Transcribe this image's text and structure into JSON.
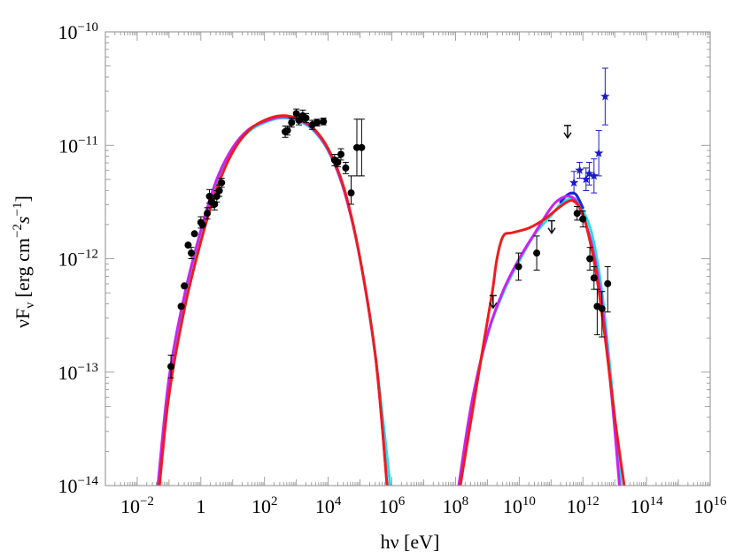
{
  "chart_data": {
    "type": "scatter",
    "title": "",
    "xlabel": "hν [eV]",
    "ylabel": "νF_ν [erg cm^-2 s^-1]",
    "xscale": "log",
    "yscale": "log",
    "xlim": [
      0.001,
      1e+16
    ],
    "ylim": [
      1e-14,
      1e-10
    ],
    "grid": false,
    "legend": "none",
    "x_tick_labels": [
      {
        "value": 0.01,
        "base": "10",
        "exp": "−2"
      },
      {
        "value": 1,
        "base": "1",
        "exp": ""
      },
      {
        "value": 100,
        "base": "10",
        "exp": "2"
      },
      {
        "value": 10000,
        "base": "10",
        "exp": "4"
      },
      {
        "value": 1000000,
        "base": "10",
        "exp": "6"
      },
      {
        "value": 100000000,
        "base": "10",
        "exp": "8"
      },
      {
        "value": 10000000000,
        "base": "10",
        "exp": "10"
      },
      {
        "value": 1000000000000,
        "base": "10",
        "exp": "12"
      },
      {
        "value": 100000000000000,
        "base": "10",
        "exp": "14"
      },
      {
        "value": 10000000000000000,
        "base": "10",
        "exp": "16"
      }
    ],
    "y_tick_labels": [
      {
        "value": 1e-10,
        "base": "10",
        "exp": "−10"
      },
      {
        "value": 1e-11,
        "base": "10",
        "exp": "−11"
      },
      {
        "value": 1e-12,
        "base": "10",
        "exp": "−12"
      },
      {
        "value": 1e-13,
        "base": "10",
        "exp": "−13"
      },
      {
        "value": 1e-14,
        "base": "10",
        "exp": "−14"
      }
    ],
    "colors": {
      "red": "#ee1c1c",
      "magenta": "#cc22ee",
      "cyan": "#22ddee",
      "blue": "#2222dd",
      "stars": "#1a1acc",
      "data": "#000000"
    },
    "data_points": [
      [
        -0.94,
        -12.95,
        0.1,
        0.1
      ],
      [
        -0.62,
        -12.42,
        0,
        0
      ],
      [
        -0.52,
        -12.24,
        0,
        0
      ],
      [
        -0.4,
        -11.88,
        0,
        0
      ],
      [
        -0.3,
        -11.95,
        0.05,
        0.05
      ],
      [
        -0.2,
        -11.78,
        0,
        0
      ],
      [
        0.0,
        -11.68,
        0.05,
        0.05
      ],
      [
        0.05,
        -11.7,
        0,
        0
      ],
      [
        0.2,
        -11.6,
        0.05,
        0.05
      ],
      [
        0.27,
        -11.45,
        0.06,
        0.06
      ],
      [
        0.33,
        -11.5,
        0.05,
        0.05
      ],
      [
        0.43,
        -11.52,
        0.05,
        0.05
      ],
      [
        0.5,
        -11.45,
        0.05,
        0.05
      ],
      [
        0.58,
        -11.4,
        0.05,
        0.05
      ],
      [
        0.65,
        -11.33,
        0.04,
        0.04
      ],
      [
        2.65,
        -10.88,
        0.05,
        0.05
      ],
      [
        2.72,
        -10.87,
        0.04,
        0.04
      ],
      [
        2.85,
        -10.8,
        0.04,
        0.04
      ],
      [
        3.0,
        -10.72,
        0.04,
        0.04
      ],
      [
        3.08,
        -10.78,
        0.04,
        0.04
      ],
      [
        3.2,
        -10.74,
        0.05,
        0.05
      ],
      [
        3.3,
        -10.76,
        0.04,
        0.04
      ],
      [
        3.5,
        -10.82,
        0.04,
        0.04
      ],
      [
        3.65,
        -10.8,
        0.03,
        0.03
      ],
      [
        3.85,
        -10.79,
        0.03,
        0.03
      ],
      [
        4.2,
        -11.13,
        0.05,
        0.05
      ],
      [
        4.3,
        -11.15,
        0.04,
        0.04
      ],
      [
        4.4,
        -11.08,
        0.05,
        0.05
      ],
      [
        4.55,
        -11.2,
        0.05,
        0.05
      ],
      [
        4.72,
        -11.42,
        0.1,
        0.15
      ],
      [
        4.9,
        -11.02,
        0.25,
        0.25
      ],
      [
        5.05,
        -11.02,
        0.25,
        0.25
      ],
      [
        9.98,
        -12.07,
        0.12,
        0.12
      ],
      [
        10.55,
        -11.95,
        0.15,
        0.15
      ],
      [
        11.82,
        -11.6,
        0.06,
        0.06
      ],
      [
        12.0,
        -11.65,
        0.07,
        0.07
      ],
      [
        12.22,
        -12.0,
        0.1,
        0.1
      ],
      [
        12.35,
        -12.17,
        0.1,
        0.1
      ],
      [
        12.45,
        -12.42,
        0.25,
        0.15
      ],
      [
        12.6,
        -12.44,
        0.25,
        0.15
      ],
      [
        12.78,
        -12.22,
        0.25,
        0.15
      ]
    ],
    "upper_limits": [
      [
        9.18,
        -12.38
      ],
      [
        11.02,
        -11.72
      ],
      [
        11.52,
        -10.88
      ]
    ],
    "stars": [
      [
        11.72,
        -11.33,
        0.1,
        0.1
      ],
      [
        11.9,
        -11.22,
        0.07,
        0.07
      ],
      [
        12.1,
        -11.3,
        0.1,
        0.1
      ],
      [
        12.2,
        -11.25,
        0.1,
        0.1
      ],
      [
        12.35,
        -11.27,
        0.15,
        0.15
      ],
      [
        12.5,
        -11.07,
        0.2,
        0.2
      ],
      [
        12.7,
        -10.57,
        0.25,
        0.25
      ]
    ],
    "curves": [
      {
        "color": "cyan",
        "points": [
          [
            -1.35,
            -14
          ],
          [
            -1,
            -13.1
          ],
          [
            -0.5,
            -12.35
          ],
          [
            0,
            -11.8
          ],
          [
            0.5,
            -11.35
          ],
          [
            1,
            -11.05
          ],
          [
            1.5,
            -10.88
          ],
          [
            2,
            -10.8
          ],
          [
            2.5,
            -10.76
          ],
          [
            3,
            -10.78
          ],
          [
            3.5,
            -10.86
          ],
          [
            4,
            -11.05
          ],
          [
            4.5,
            -11.4
          ],
          [
            5,
            -12.0
          ],
          [
            5.5,
            -12.9
          ],
          [
            5.95,
            -14
          ]
        ]
      },
      {
        "color": "cyan",
        "points": [
          [
            8.15,
            -14
          ],
          [
            8.5,
            -13.3
          ],
          [
            9,
            -12.68
          ],
          [
            9.5,
            -12.3
          ],
          [
            10,
            -12.02
          ],
          [
            10.5,
            -11.78
          ],
          [
            11,
            -11.62
          ],
          [
            11.3,
            -11.52
          ],
          [
            11.6,
            -11.47
          ],
          [
            11.8,
            -11.48
          ],
          [
            12.0,
            -11.57
          ],
          [
            12.3,
            -11.8
          ],
          [
            12.6,
            -12.3
          ],
          [
            12.9,
            -13.1
          ],
          [
            13.2,
            -14
          ]
        ]
      },
      {
        "color": "blue",
        "points": [
          [
            11.3,
            -11.5
          ],
          [
            11.5,
            -11.44
          ],
          [
            11.65,
            -11.42
          ],
          [
            11.8,
            -11.44
          ],
          [
            12.0,
            -11.55
          ]
        ]
      },
      {
        "color": "magenta",
        "points": [
          [
            -1.35,
            -14
          ],
          [
            -1,
            -13.05
          ],
          [
            -0.5,
            -12.3
          ],
          [
            0,
            -11.75
          ],
          [
            0.5,
            -11.3
          ],
          [
            1,
            -11.02
          ],
          [
            1.5,
            -10.86
          ],
          [
            2,
            -10.79
          ],
          [
            2.5,
            -10.75
          ],
          [
            3,
            -10.77
          ],
          [
            3.5,
            -10.85
          ],
          [
            4,
            -11.04
          ],
          [
            4.5,
            -11.4
          ],
          [
            5,
            -12.0
          ],
          [
            5.5,
            -12.9
          ],
          [
            5.85,
            -14
          ]
        ]
      },
      {
        "color": "magenta",
        "points": [
          [
            8.1,
            -14
          ],
          [
            8.5,
            -13.28
          ],
          [
            9,
            -12.67
          ],
          [
            9.5,
            -12.28
          ],
          [
            10,
            -12.0
          ],
          [
            10.5,
            -11.77
          ],
          [
            11,
            -11.55
          ],
          [
            11.3,
            -11.47
          ],
          [
            11.6,
            -11.45
          ],
          [
            11.8,
            -11.5
          ],
          [
            12.0,
            -11.62
          ],
          [
            12.3,
            -11.9
          ],
          [
            12.6,
            -12.4
          ],
          [
            12.9,
            -13.2
          ],
          [
            13.15,
            -14
          ]
        ]
      },
      {
        "color": "red",
        "points": [
          [
            -1.3,
            -14
          ],
          [
            -1,
            -13.2
          ],
          [
            -0.5,
            -12.42
          ],
          [
            0,
            -11.85
          ],
          [
            0.5,
            -11.38
          ],
          [
            1,
            -11.06
          ],
          [
            1.5,
            -10.87
          ],
          [
            2,
            -10.78
          ],
          [
            2.5,
            -10.74
          ],
          [
            3,
            -10.76
          ],
          [
            3.5,
            -10.84
          ],
          [
            4,
            -11.03
          ],
          [
            4.5,
            -11.38
          ],
          [
            5,
            -12.0
          ],
          [
            5.5,
            -12.9
          ],
          [
            5.85,
            -14
          ]
        ]
      },
      {
        "color": "red",
        "points": [
          [
            8.15,
            -14
          ],
          [
            8.5,
            -13.4
          ],
          [
            8.85,
            -12.8
          ],
          [
            9.15,
            -12.3
          ],
          [
            9.3,
            -12.0
          ],
          [
            9.5,
            -11.8
          ],
          [
            9.8,
            -11.77
          ],
          [
            10.3,
            -11.73
          ],
          [
            10.8,
            -11.65
          ],
          [
            11.2,
            -11.56
          ],
          [
            11.5,
            -11.5
          ],
          [
            11.7,
            -11.49
          ],
          [
            11.9,
            -11.55
          ],
          [
            12.1,
            -11.7
          ],
          [
            12.4,
            -12.1
          ],
          [
            12.7,
            -12.7
          ],
          [
            13.0,
            -13.4
          ],
          [
            13.3,
            -14
          ]
        ]
      }
    ]
  }
}
